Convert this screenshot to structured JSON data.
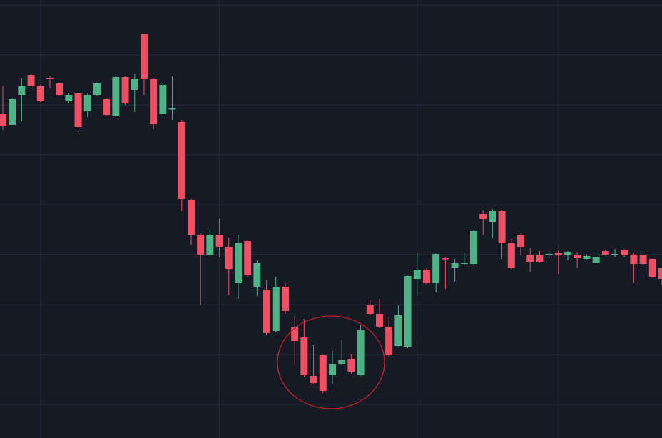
{
  "chart_data": {
    "type": "candlestick",
    "up_color": "#4fb286",
    "down_color": "#ef4f62",
    "grid": true,
    "xlim": [
      -0.3,
      70
    ],
    "xticks": [
      4,
      23,
      44,
      59
    ],
    "ylim": [
      0,
      614
    ],
    "yticks": [
      47,
      117,
      187,
      257,
      327,
      397,
      467,
      537,
      607
    ],
    "open": [
      454,
      439,
      481,
      509,
      493,
      505,
      497,
      472,
      483,
      458,
      481,
      475,
      452,
      506,
      488,
      566,
      503,
      454,
      461,
      443,
      334,
      285,
      257,
      285,
      268,
      217,
      276,
      212,
      208,
      150,
      212,
      155,
      141,
      87,
      116,
      88,
      104,
      111,
      88,
      186,
      174,
      156,
      129,
      128,
      223,
      236,
      217,
      252,
      239,
      244,
      244,
      314,
      303,
      318,
      273,
      285,
      257,
      256,
      257,
      259,
      257,
      257,
      251,
      246,
      262,
      257,
      264,
      257,
      257,
      251,
      238
    ],
    "high": [
      494,
      476,
      504,
      510,
      495,
      507,
      498,
      483,
      484,
      483,
      498,
      476,
      507,
      507,
      510,
      566,
      504,
      497,
      507,
      446,
      335,
      287,
      292,
      308,
      281,
      285,
      278,
      249,
      222,
      226,
      217,
      171,
      167,
      131,
      117,
      122,
      137,
      118,
      158,
      194,
      195,
      170,
      186,
      228,
      259,
      238,
      259,
      254,
      251,
      260,
      291,
      319,
      321,
      319,
      279,
      287,
      266,
      262,
      262,
      263,
      262,
      261,
      257,
      256,
      264,
      265,
      265,
      259,
      259,
      252,
      239
    ],
    "low": [
      432,
      439,
      444,
      491,
      471,
      490,
      480,
      470,
      429,
      450,
      480,
      452,
      450,
      467,
      457,
      481,
      433,
      452,
      446,
      318,
      271,
      187,
      254,
      254,
      200,
      195,
      226,
      199,
      144,
      148,
      174,
      102,
      86,
      76,
      63,
      76,
      102,
      90,
      87,
      173,
      154,
      114,
      128,
      126,
      199,
      215,
      204,
      209,
      219,
      241,
      242,
      284,
      280,
      251,
      236,
      256,
      233,
      246,
      253,
      230,
      249,
      238,
      250,
      244,
      256,
      254,
      254,
      217,
      243,
      225,
      214
    ],
    "close": [
      438,
      475,
      493,
      493,
      472,
      503,
      481,
      481,
      436,
      481,
      497,
      453,
      506,
      469,
      503,
      503,
      440,
      495,
      462,
      335,
      285,
      257,
      285,
      268,
      237,
      274,
      228,
      245,
      147,
      212,
      178,
      136,
      88,
      77,
      66,
      104,
      109,
      93,
      151,
      174,
      156,
      116,
      172,
      227,
      236,
      217,
      258,
      251,
      245,
      246,
      290,
      307,
      318,
      273,
      238,
      268,
      247,
      247,
      258,
      257,
      261,
      252,
      255,
      254,
      257,
      258,
      256,
      244,
      244,
      226,
      223
    ]
  }
}
